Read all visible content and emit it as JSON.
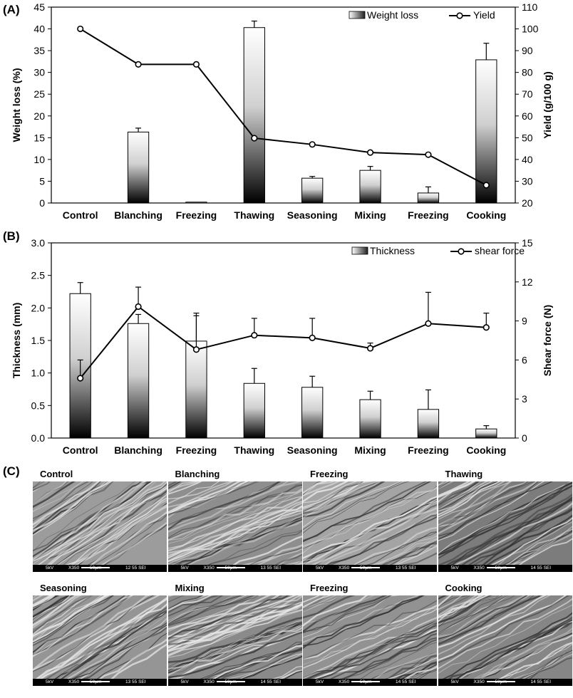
{
  "panels": {
    "a": "(A)",
    "b": "(B)",
    "c": "(C)"
  },
  "chart_data": [
    {
      "type": "bar",
      "categories": [
        "Control",
        "Blanching",
        "Freezing",
        "Thawing",
        "Seasoning",
        "Mixing",
        "Freezing",
        "Cooking"
      ],
      "ylabel": "Weight loss (%)",
      "y2label": "Yield (g/100 g)",
      "ylim": [
        0,
        45
      ],
      "yticks": [
        0,
        5,
        10,
        15,
        20,
        25,
        30,
        35,
        40,
        45
      ],
      "y2lim": [
        20,
        110
      ],
      "y2ticks": [
        20,
        30,
        40,
        50,
        60,
        70,
        80,
        90,
        100,
        110
      ],
      "legend_placement": "top-right",
      "grid": false,
      "series": [
        {
          "name": "Weight loss",
          "kind": "bar",
          "axis": "left",
          "values": [
            null,
            16.3,
            0.2,
            40.3,
            5.7,
            7.5,
            2.3,
            32.9
          ],
          "errors": [
            null,
            0.9,
            0.0,
            1.5,
            0.4,
            0.9,
            1.4,
            3.8
          ]
        },
        {
          "name": "Yield",
          "kind": "line",
          "axis": "right",
          "values": [
            100,
            83.7,
            83.7,
            49.8,
            46.9,
            43.2,
            42.2,
            28.2
          ]
        }
      ]
    },
    {
      "type": "bar",
      "categories": [
        "Control",
        "Blanching",
        "Freezing",
        "Thawing",
        "Seasoning",
        "Mixing",
        "Freezing",
        "Cooking"
      ],
      "ylabel": "Thickness (mm)",
      "y2label": "Shear force (N)",
      "ylim": [
        0,
        3
      ],
      "yticks": [
        "0.0",
        "0.5",
        "1.0",
        "1.5",
        "2.0",
        "2.5",
        "3.0"
      ],
      "y2lim": [
        0,
        15
      ],
      "y2ticks": [
        "0",
        "3",
        "6",
        "9",
        "12",
        "15"
      ],
      "legend_placement": "top-right",
      "grid": false,
      "series": [
        {
          "name": "Thickness",
          "kind": "bar",
          "axis": "left",
          "values": [
            2.22,
            1.76,
            1.49,
            0.84,
            0.78,
            0.59,
            0.44,
            0.14
          ],
          "errors": [
            0.17,
            0.14,
            0.43,
            0.23,
            0.17,
            0.13,
            0.3,
            0.05
          ]
        },
        {
          "name": "shear force",
          "kind": "line",
          "axis": "right",
          "values": [
            4.6,
            10.1,
            6.8,
            7.9,
            7.7,
            6.9,
            8.8,
            8.5
          ],
          "errors": [
            1.4,
            1.5,
            2.6,
            1.3,
            1.5,
            0.4,
            2.4,
            1.1
          ]
        }
      ]
    }
  ],
  "sem_images": [
    {
      "title": "Control",
      "meta": [
        "5kV",
        "X350",
        "50μm",
        "12 55 SEI"
      ]
    },
    {
      "title": "Blanching",
      "meta": [
        "5kV",
        "X350",
        "50μm",
        "13 55 SEI"
      ]
    },
    {
      "title": "Freezing",
      "meta": [
        "5kV",
        "X350",
        "50μm",
        "13 55 SEI"
      ]
    },
    {
      "title": "Thawing",
      "meta": [
        "5kV",
        "X350",
        "50μm",
        "14 55 SEI"
      ]
    },
    {
      "title": "Seasoning",
      "meta": [
        "5kV",
        "X350",
        "50μm",
        "13 55 SEI"
      ]
    },
    {
      "title": "Mixing",
      "meta": [
        "5kV",
        "X350",
        "50μm",
        "14 55 SEI"
      ]
    },
    {
      "title": "Freezing",
      "meta": [
        "5kV",
        "X350",
        "50μm",
        "14 55 SEI"
      ]
    },
    {
      "title": "Cooking",
      "meta": [
        "5kV",
        "X350",
        "50μm",
        "14 55 SEI"
      ]
    }
  ]
}
